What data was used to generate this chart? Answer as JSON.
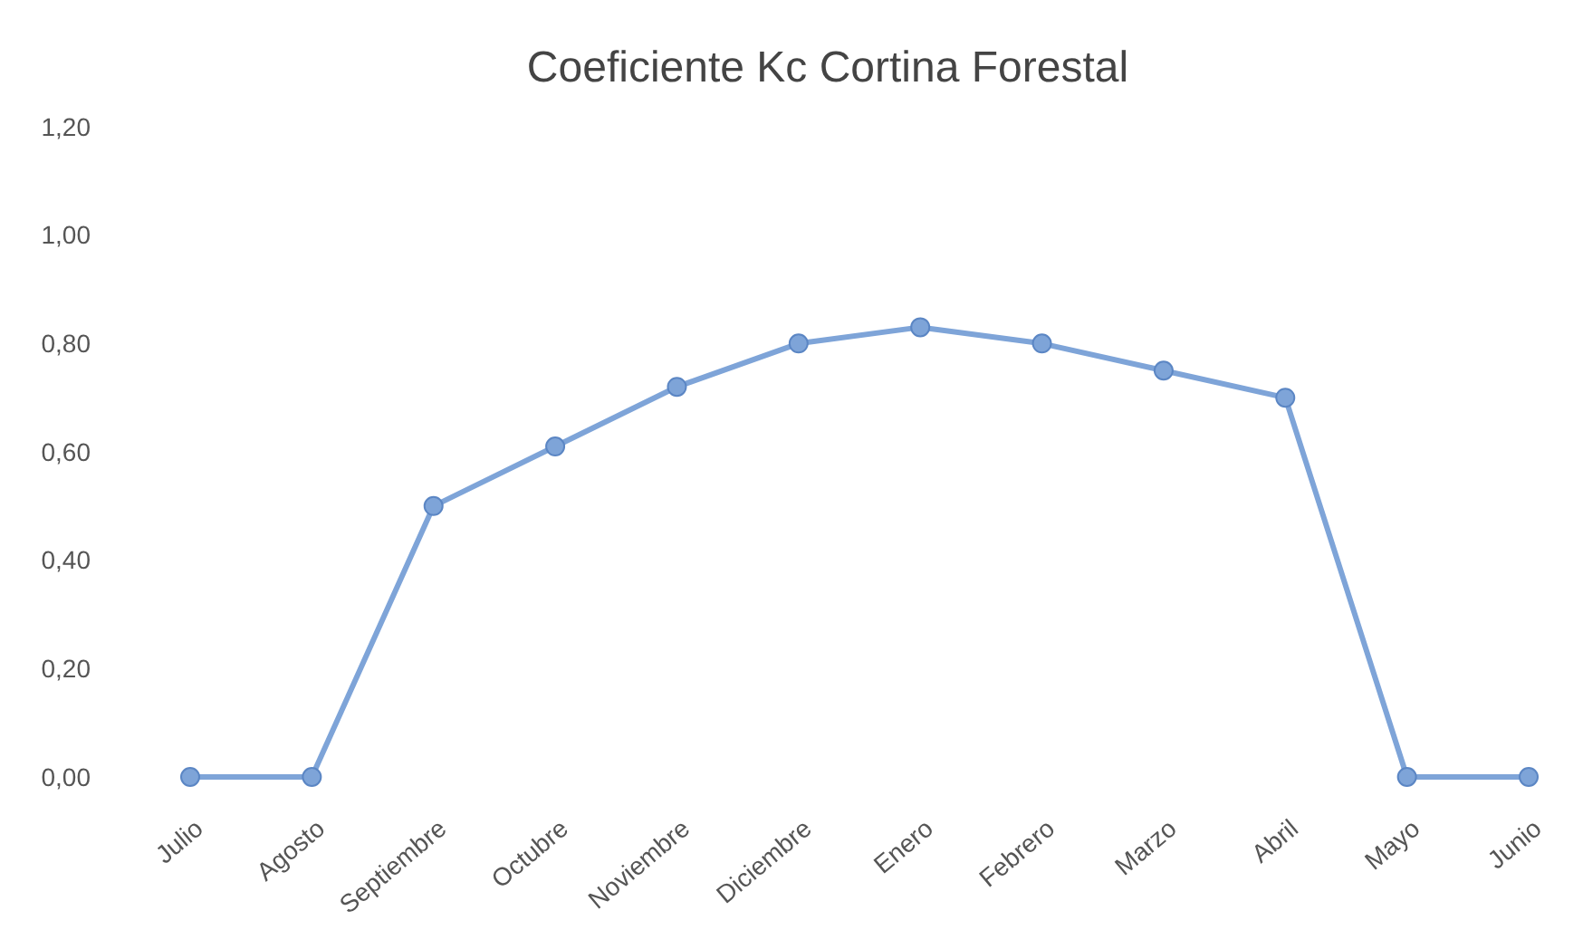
{
  "chart_data": {
    "type": "line",
    "title": "Coeficiente Kc Cortina Forestal",
    "categories": [
      "Julio",
      "Agosto",
      "Septiembre",
      "Octubre",
      "Noviembre",
      "Diciembre",
      "Enero",
      "Febrero",
      "Marzo",
      "Abril",
      "Mayo",
      "Junio"
    ],
    "series": [
      {
        "color": "#7ea4d8",
        "values": [
          0,
          0,
          0.5,
          0.61,
          0.72,
          0.8,
          0.83,
          0.8,
          0.75,
          0.7,
          0,
          0
        ]
      }
    ],
    "ylim": [
      0,
      1.2
    ],
    "yticks": [
      {
        "value": 0,
        "label": "0,00"
      },
      {
        "value": 0.2,
        "label": "0,20"
      },
      {
        "value": 0.4,
        "label": "0,40"
      },
      {
        "value": 0.6,
        "label": "0,60"
      },
      {
        "value": 0.8,
        "label": "0,80"
      },
      {
        "value": 1,
        "label": "1,00"
      },
      {
        "value": 1.2,
        "label": "1,20"
      }
    ],
    "grid": false,
    "marker": "circle",
    "line_style": "solid"
  }
}
